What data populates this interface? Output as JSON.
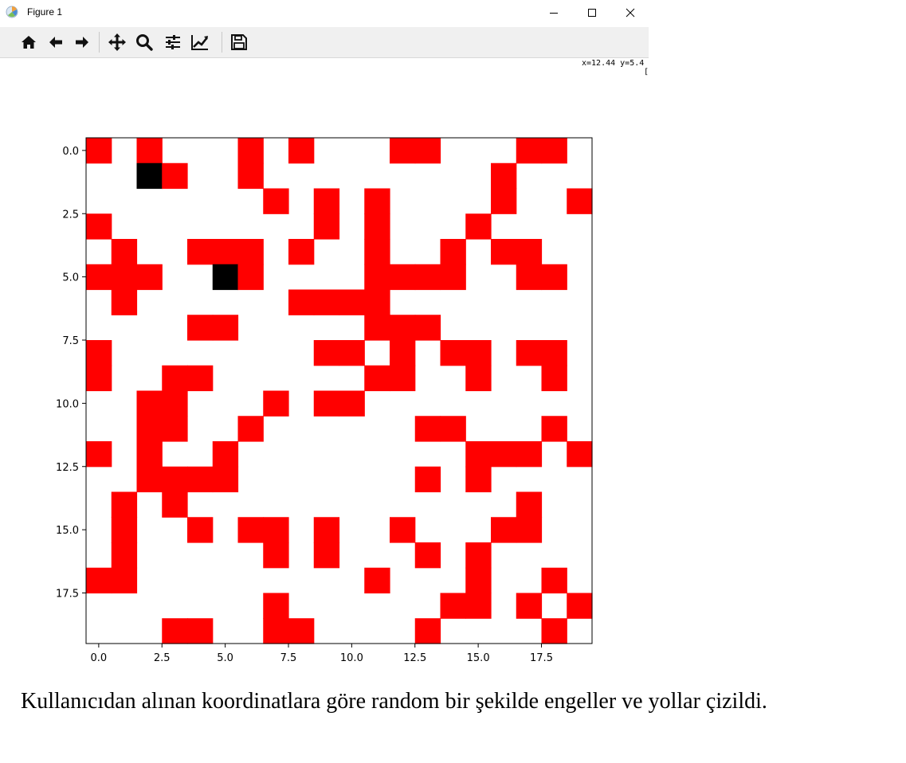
{
  "window": {
    "title": "Figure 1",
    "icon": "matplotlib-icon",
    "controls": [
      "minimize-icon",
      "maximize-icon",
      "close-icon"
    ]
  },
  "toolbar": {
    "buttons": [
      {
        "name": "home-button",
        "icon": "home-icon"
      },
      {
        "name": "back-button",
        "icon": "arrow-left-icon"
      },
      {
        "name": "forward-button",
        "icon": "arrow-right-icon"
      },
      {
        "name": "pan-button",
        "icon": "move-icon"
      },
      {
        "name": "zoom-button",
        "icon": "search-icon"
      },
      {
        "name": "subplots-button",
        "icon": "sliders-icon"
      },
      {
        "name": "axes-button",
        "icon": "chart-line-icon"
      },
      {
        "name": "save-button",
        "icon": "floppy-disk-icon"
      }
    ],
    "coords": "x=12.44 y=5.4",
    "coords_extra": "["
  },
  "chart_data": {
    "type": "heatmap",
    "rows": 20,
    "cols": 20,
    "xticks": [
      "0.0",
      "2.5",
      "5.0",
      "7.5",
      "10.0",
      "12.5",
      "15.0",
      "17.5"
    ],
    "yticks": [
      "0.0",
      "2.5",
      "5.0",
      "7.5",
      "10.0",
      "12.5",
      "15.0",
      "17.5"
    ],
    "tick_values": [
      0,
      2.5,
      5,
      7.5,
      10,
      12.5,
      15,
      17.5
    ],
    "colors": {
      "0": "#ffffff",
      "1": "#ff0000",
      "2": "#000000"
    },
    "grid": [
      [
        1,
        0,
        1,
        0,
        0,
        0,
        1,
        0,
        1,
        0,
        0,
        0,
        1,
        1,
        0,
        0,
        0,
        1,
        1,
        0
      ],
      [
        0,
        0,
        2,
        1,
        0,
        0,
        1,
        0,
        0,
        0,
        0,
        0,
        0,
        0,
        0,
        0,
        1,
        0,
        0,
        0
      ],
      [
        0,
        0,
        0,
        0,
        0,
        0,
        0,
        1,
        0,
        1,
        0,
        1,
        0,
        0,
        0,
        0,
        1,
        0,
        0,
        1
      ],
      [
        1,
        0,
        0,
        0,
        0,
        0,
        0,
        0,
        0,
        1,
        0,
        1,
        0,
        0,
        0,
        1,
        0,
        0,
        0,
        0
      ],
      [
        0,
        1,
        0,
        0,
        1,
        1,
        1,
        0,
        1,
        0,
        0,
        1,
        0,
        0,
        1,
        0,
        1,
        1,
        0,
        0
      ],
      [
        1,
        1,
        1,
        0,
        0,
        2,
        1,
        0,
        0,
        0,
        0,
        1,
        1,
        1,
        1,
        0,
        0,
        1,
        1,
        0
      ],
      [
        0,
        1,
        0,
        0,
        0,
        0,
        0,
        0,
        1,
        1,
        1,
        1,
        0,
        0,
        0,
        0,
        0,
        0,
        0,
        0
      ],
      [
        0,
        0,
        0,
        0,
        1,
        1,
        0,
        0,
        0,
        0,
        0,
        1,
        1,
        1,
        0,
        0,
        0,
        0,
        0,
        0
      ],
      [
        1,
        0,
        0,
        0,
        0,
        0,
        0,
        0,
        0,
        1,
        1,
        0,
        1,
        0,
        1,
        1,
        0,
        1,
        1,
        0
      ],
      [
        1,
        0,
        0,
        1,
        1,
        0,
        0,
        0,
        0,
        0,
        0,
        1,
        1,
        0,
        0,
        1,
        0,
        0,
        1,
        0
      ],
      [
        0,
        0,
        1,
        1,
        0,
        0,
        0,
        1,
        0,
        1,
        1,
        0,
        0,
        0,
        0,
        0,
        0,
        0,
        0,
        0
      ],
      [
        0,
        0,
        1,
        1,
        0,
        0,
        1,
        0,
        0,
        0,
        0,
        0,
        0,
        1,
        1,
        0,
        0,
        0,
        1,
        0
      ],
      [
        1,
        0,
        1,
        0,
        0,
        1,
        0,
        0,
        0,
        0,
        0,
        0,
        0,
        0,
        0,
        1,
        1,
        1,
        0,
        1
      ],
      [
        0,
        0,
        1,
        1,
        1,
        1,
        0,
        0,
        0,
        0,
        0,
        0,
        0,
        1,
        0,
        1,
        0,
        0,
        0,
        0
      ],
      [
        0,
        1,
        0,
        1,
        0,
        0,
        0,
        0,
        0,
        0,
        0,
        0,
        0,
        0,
        0,
        0,
        0,
        1,
        0,
        0
      ],
      [
        0,
        1,
        0,
        0,
        1,
        0,
        1,
        1,
        0,
        1,
        0,
        0,
        1,
        0,
        0,
        0,
        1,
        1,
        0,
        0
      ],
      [
        0,
        1,
        0,
        0,
        0,
        0,
        0,
        1,
        0,
        1,
        0,
        0,
        0,
        1,
        0,
        1,
        0,
        0,
        0,
        0
      ],
      [
        1,
        1,
        0,
        0,
        0,
        0,
        0,
        0,
        0,
        0,
        0,
        1,
        0,
        0,
        0,
        1,
        0,
        0,
        1,
        0
      ],
      [
        0,
        0,
        0,
        0,
        0,
        0,
        0,
        1,
        0,
        0,
        0,
        0,
        0,
        0,
        1,
        1,
        0,
        1,
        0,
        1
      ],
      [
        0,
        0,
        0,
        1,
        1,
        0,
        0,
        1,
        1,
        0,
        0,
        0,
        0,
        1,
        0,
        0,
        0,
        0,
        1,
        0
      ]
    ]
  },
  "caption": {
    "text": " Kullanıcıdan alınan koordinatlara göre random bir şekilde engeller ve yollar çizildi."
  }
}
